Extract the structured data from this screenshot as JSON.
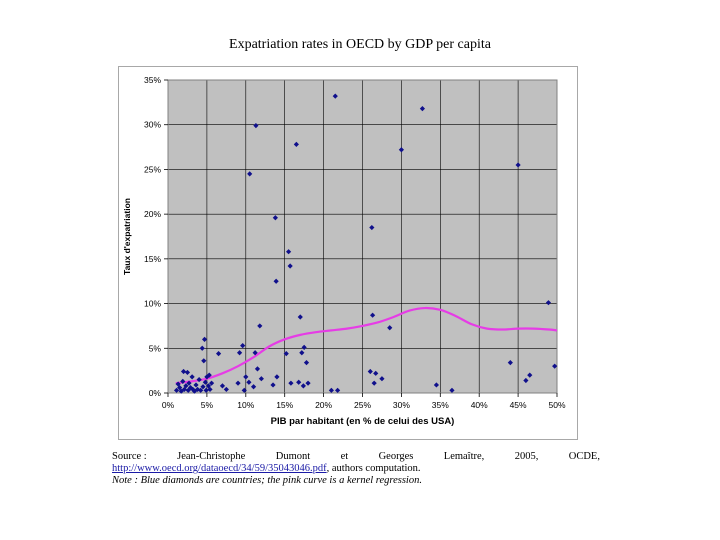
{
  "chart_data": {
    "type": "scatter",
    "title": "Expatriation rates in OECD by GDP per capita",
    "xlabel": "PIB par habitant (en % de celui des USA)",
    "ylabel": "Taux d'expatriation",
    "xlim": [
      0,
      0.5
    ],
    "ylim": [
      0,
      0.35
    ],
    "x_ticks": [
      "0%",
      "5%",
      "10%",
      "15%",
      "20%",
      "25%",
      "30%",
      "35%",
      "40%",
      "45%",
      "50%"
    ],
    "y_ticks": [
      "0%",
      "5%",
      "10%",
      "15%",
      "20%",
      "25%",
      "30%",
      "35%"
    ],
    "grid": true,
    "series": [
      {
        "name": "Countries",
        "marker": "diamond",
        "color": "#10108c",
        "points": [
          [
            0.011,
            0.003
          ],
          [
            0.013,
            0.01
          ],
          [
            0.015,
            0.006
          ],
          [
            0.017,
            0.002
          ],
          [
            0.019,
            0.013
          ],
          [
            0.02,
            0.024
          ],
          [
            0.021,
            0.004
          ],
          [
            0.023,
            0.008
          ],
          [
            0.025,
            0.023
          ],
          [
            0.026,
            0.003
          ],
          [
            0.027,
            0.011
          ],
          [
            0.029,
            0.006
          ],
          [
            0.031,
            0.018
          ],
          [
            0.032,
            0.004
          ],
          [
            0.034,
            0.002
          ],
          [
            0.036,
            0.009
          ],
          [
            0.038,
            0.004
          ],
          [
            0.04,
            0.015
          ],
          [
            0.042,
            0.003
          ],
          [
            0.044,
            0.05
          ],
          [
            0.045,
            0.007
          ],
          [
            0.046,
            0.036
          ],
          [
            0.047,
            0.06
          ],
          [
            0.048,
            0.012
          ],
          [
            0.049,
            0.003
          ],
          [
            0.05,
            0.018
          ],
          [
            0.052,
            0.008
          ],
          [
            0.053,
            0.02
          ],
          [
            0.054,
            0.004
          ],
          [
            0.056,
            0.011
          ],
          [
            0.065,
            0.044
          ],
          [
            0.07,
            0.008
          ],
          [
            0.075,
            0.004
          ],
          [
            0.09,
            0.011
          ],
          [
            0.092,
            0.045
          ],
          [
            0.096,
            0.053
          ],
          [
            0.098,
            0.003
          ],
          [
            0.1,
            0.018
          ],
          [
            0.104,
            0.012
          ],
          [
            0.105,
            0.245
          ],
          [
            0.11,
            0.007
          ],
          [
            0.112,
            0.045
          ],
          [
            0.113,
            0.299
          ],
          [
            0.115,
            0.027
          ],
          [
            0.118,
            0.075
          ],
          [
            0.12,
            0.016
          ],
          [
            0.135,
            0.009
          ],
          [
            0.138,
            0.196
          ],
          [
            0.139,
            0.125
          ],
          [
            0.14,
            0.018
          ],
          [
            0.152,
            0.044
          ],
          [
            0.155,
            0.158
          ],
          [
            0.157,
            0.142
          ],
          [
            0.158,
            0.011
          ],
          [
            0.165,
            0.278
          ],
          [
            0.168,
            0.012
          ],
          [
            0.17,
            0.085
          ],
          [
            0.172,
            0.045
          ],
          [
            0.174,
            0.008
          ],
          [
            0.175,
            0.051
          ],
          [
            0.178,
            0.034
          ],
          [
            0.18,
            0.011
          ],
          [
            0.21,
            0.003
          ],
          [
            0.215,
            0.332
          ],
          [
            0.218,
            0.003
          ],
          [
            0.26,
            0.024
          ],
          [
            0.262,
            0.185
          ],
          [
            0.263,
            0.087
          ],
          [
            0.265,
            0.011
          ],
          [
            0.267,
            0.022
          ],
          [
            0.275,
            0.016
          ],
          [
            0.285,
            0.073
          ],
          [
            0.3,
            0.272
          ],
          [
            0.327,
            0.318
          ],
          [
            0.345,
            0.009
          ],
          [
            0.365,
            0.003
          ],
          [
            0.44,
            0.034
          ],
          [
            0.45,
            0.255
          ],
          [
            0.46,
            0.014
          ],
          [
            0.465,
            0.02
          ],
          [
            0.489,
            0.101
          ],
          [
            0.497,
            0.03
          ]
        ]
      },
      {
        "name": "Kernel regression",
        "type": "line",
        "color": "#e63ce6",
        "points": [
          [
            0.01,
            0.011
          ],
          [
            0.03,
            0.013
          ],
          [
            0.05,
            0.016
          ],
          [
            0.07,
            0.022
          ],
          [
            0.09,
            0.03
          ],
          [
            0.11,
            0.04
          ],
          [
            0.13,
            0.052
          ],
          [
            0.15,
            0.06
          ],
          [
            0.17,
            0.065
          ],
          [
            0.19,
            0.068
          ],
          [
            0.21,
            0.07
          ],
          [
            0.23,
            0.072
          ],
          [
            0.25,
            0.075
          ],
          [
            0.27,
            0.079
          ],
          [
            0.29,
            0.085
          ],
          [
            0.31,
            0.092
          ],
          [
            0.33,
            0.095
          ],
          [
            0.35,
            0.093
          ],
          [
            0.37,
            0.086
          ],
          [
            0.39,
            0.077
          ],
          [
            0.41,
            0.072
          ],
          [
            0.43,
            0.071
          ],
          [
            0.45,
            0.072
          ],
          [
            0.47,
            0.072
          ],
          [
            0.49,
            0.071
          ],
          [
            0.5,
            0.07
          ]
        ]
      }
    ]
  },
  "source": {
    "label": "Source :",
    "authors": [
      "Jean-Christophe",
      "Dumont",
      "et",
      "Georges",
      "Lemaître,",
      "2005,",
      "OCDE,"
    ],
    "url": "http://www.oecd.org/dataoecd/34/59/35043046.pdf",
    "url_suffix": ", authors computation.",
    "note": "Note : Blue diamonds are countries; the pink curve is a kernel regression."
  }
}
